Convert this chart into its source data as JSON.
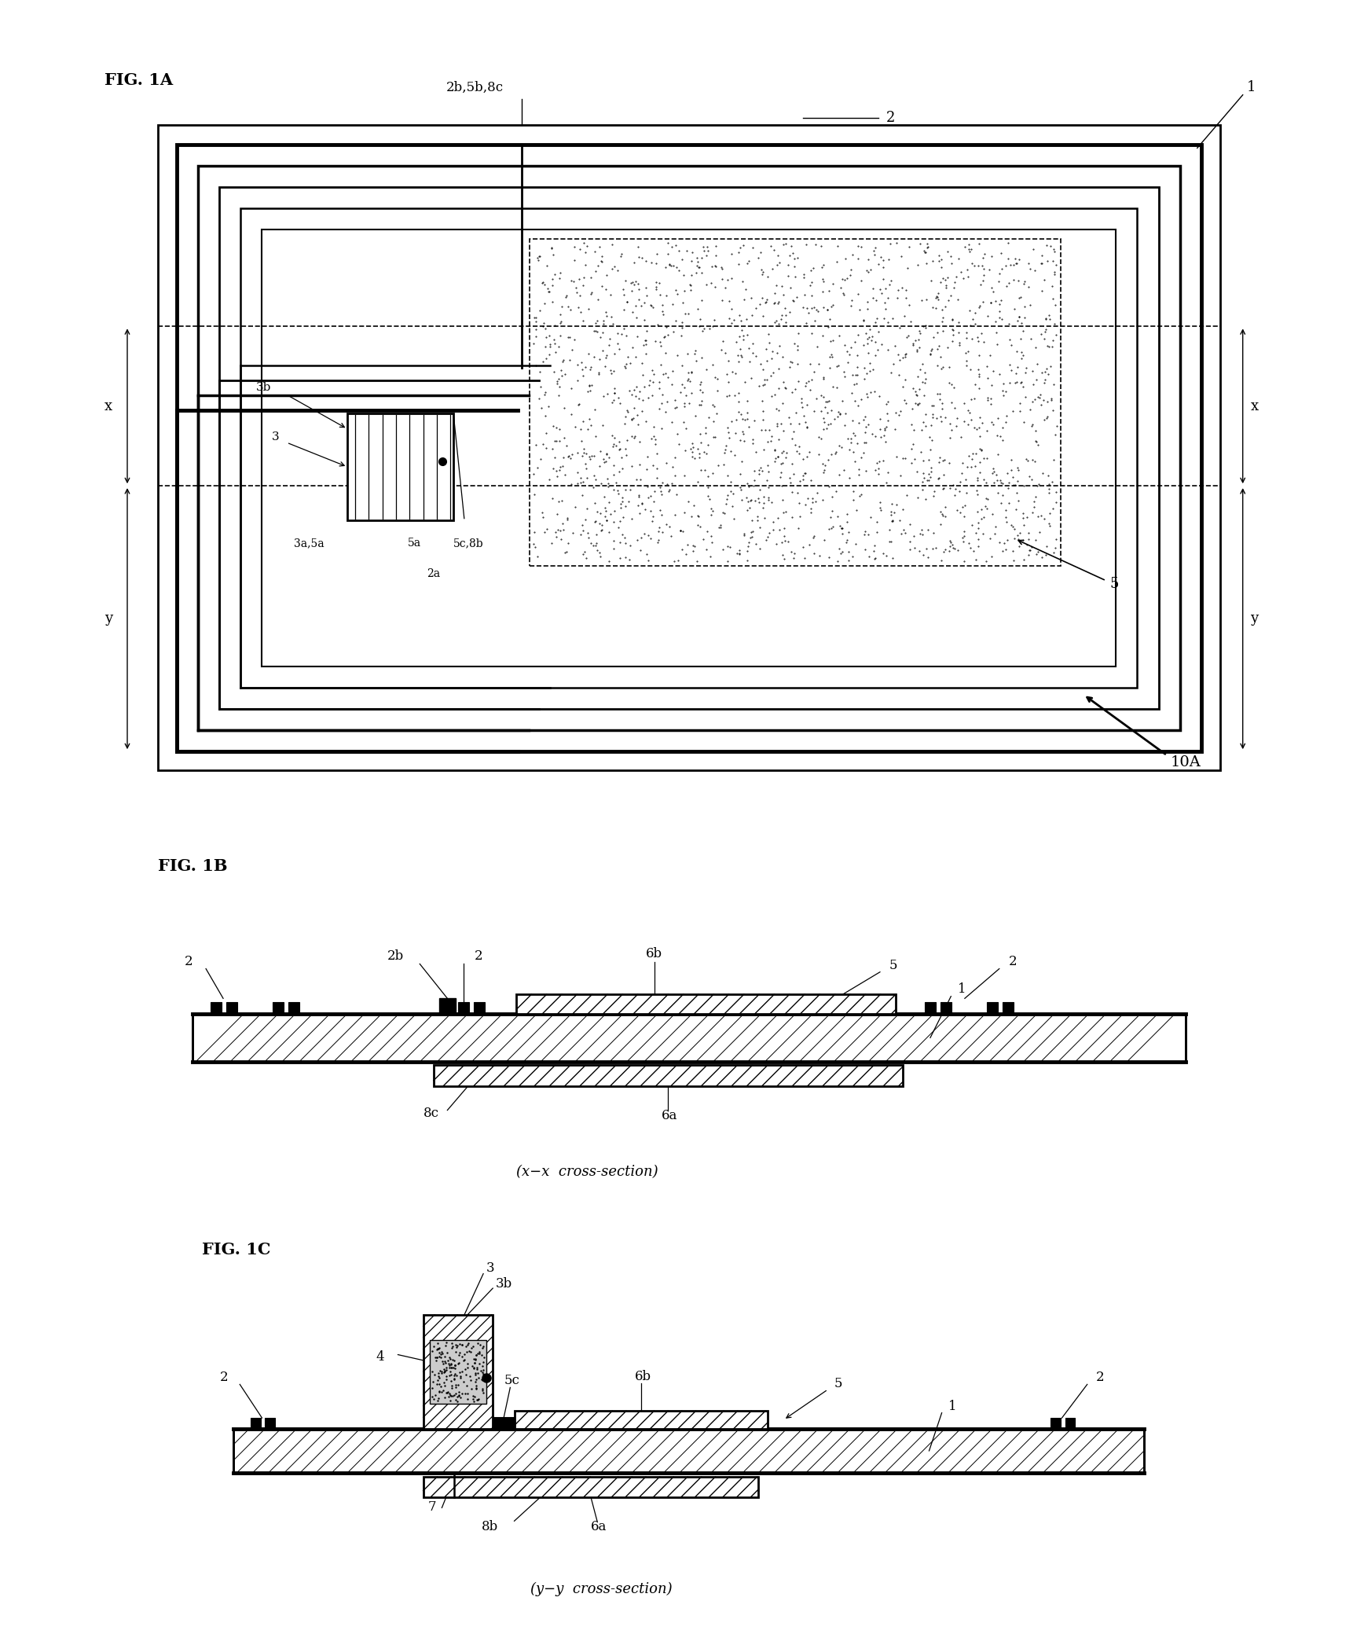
{
  "fig_width": 17.36,
  "fig_height": 20.93,
  "bg_color": "#ffffff",
  "fig1A_label": "FIG. 1A",
  "fig1B_label": "FIG. 1B",
  "fig1C_label": "FIG. 1C",
  "label_10A": "10A",
  "label_1": "1",
  "label_2": "2",
  "label_2b5b8c": "2b,5b,8c",
  "label_3": "3",
  "label_3a5a": "3a,5a",
  "label_3b": "3b",
  "label_5": "5",
  "label_5a": "5a",
  "label_5c8b": "5c,8b",
  "label_2a": "2a",
  "label_x": "x",
  "label_y": "y",
  "label_2b_1B": "2b",
  "label_2_1B": "2",
  "label_6b_1B": "6b",
  "label_5_1B": "5",
  "label_1_1B": "1",
  "label_2r_1B": "2",
  "label_8c_1B": "8c",
  "label_6a_1B": "6a",
  "label_xx": "(x−x  cross-section)",
  "label_3_1C": "3",
  "label_3b_1C": "3b",
  "label_4_1C": "4",
  "label_5c_1C": "5c",
  "label_6b_1C": "6b",
  "label_5_1C": "5",
  "label_1_1C": "1",
  "label_2l_1C": "2",
  "label_2r_1C": "2",
  "label_7_1C": "7",
  "label_8b_1C": "8b",
  "label_6a_1C": "6a",
  "label_yy": "(y−y  cross-section)"
}
